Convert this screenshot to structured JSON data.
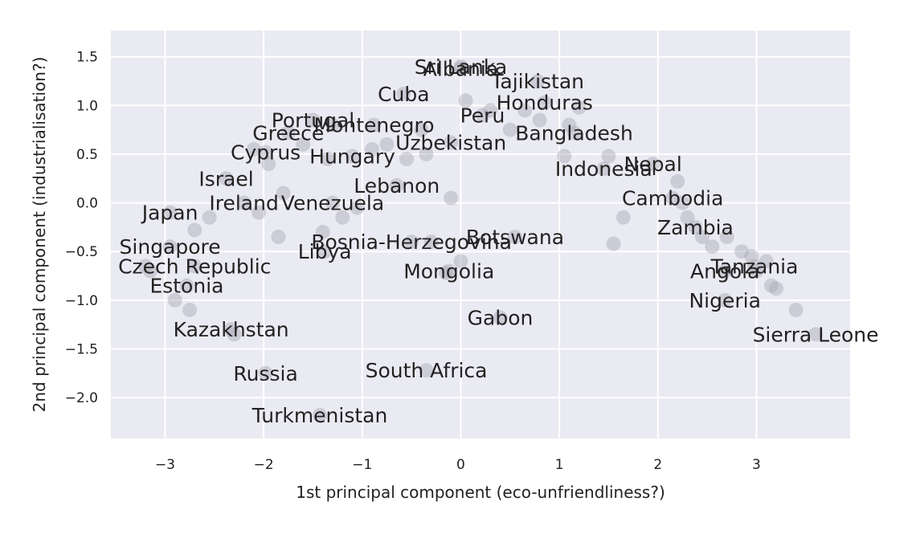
{
  "chart_data": {
    "type": "scatter",
    "xlabel": "1st principal component (eco-unfriendliness?)",
    "ylabel": "2nd principal component (industrialisation?)",
    "xlim": [
      -3.55,
      3.95
    ],
    "ylim": [
      -2.42,
      1.77
    ],
    "x_ticks": [
      -3,
      -2,
      -1,
      0,
      1,
      2,
      3
    ],
    "x_tick_labels": [
      "−3",
      "−2",
      "−1",
      "0",
      "1",
      "2",
      "3"
    ],
    "y_ticks": [
      1.5,
      1.0,
      0.5,
      0.0,
      -0.5,
      -1.0,
      -1.5,
      -2.0
    ],
    "y_tick_labels": [
      "1.5",
      "1.0",
      "0.5",
      "0.0",
      "−0.5",
      "−1.0",
      "−1.5",
      "−2.0"
    ],
    "grid": true,
    "colors": {
      "background": "#eaeaf2",
      "grid": "#ffffff",
      "point": "#a9a9b3"
    },
    "labeled_points": [
      {
        "label": "Sri Lanka",
        "x": 0.0,
        "y": 1.4
      },
      {
        "label": "Albania",
        "x": 0.0,
        "y": 1.38
      },
      {
        "label": "Tajikistan",
        "x": 0.78,
        "y": 1.25
      },
      {
        "label": "Cuba",
        "x": -0.58,
        "y": 1.12
      },
      {
        "label": "Honduras",
        "x": 0.85,
        "y": 1.03
      },
      {
        "label": "Portugal",
        "x": -1.5,
        "y": 0.85
      },
      {
        "label": "Montenegro",
        "x": -0.88,
        "y": 0.8
      },
      {
        "label": "Peru",
        "x": 0.22,
        "y": 0.9
      },
      {
        "label": "Bangladesh",
        "x": 1.15,
        "y": 0.72
      },
      {
        "label": "Uzbekistan",
        "x": -0.1,
        "y": 0.62
      },
      {
        "label": "Greece",
        "x": -1.75,
        "y": 0.72
      },
      {
        "label": "Hungary",
        "x": -1.1,
        "y": 0.48
      },
      {
        "label": "Cyprus",
        "x": -1.98,
        "y": 0.52
      },
      {
        "label": "Nepal",
        "x": 1.95,
        "y": 0.4
      },
      {
        "label": "Indonesia",
        "x": 1.45,
        "y": 0.35
      },
      {
        "label": "Israel",
        "x": -2.38,
        "y": 0.25
      },
      {
        "label": "Lebanon",
        "x": -0.65,
        "y": 0.18
      },
      {
        "label": "Ireland",
        "x": -2.2,
        "y": 0.0
      },
      {
        "label": "Venezuela",
        "x": -1.3,
        "y": 0.0
      },
      {
        "label": "Cambodia",
        "x": 2.15,
        "y": 0.05
      },
      {
        "label": "Japan",
        "x": -2.95,
        "y": -0.1
      },
      {
        "label": "Zambia",
        "x": 2.38,
        "y": -0.25
      },
      {
        "label": "Botswana",
        "x": 0.55,
        "y": -0.35
      },
      {
        "label": "Singapore",
        "x": -2.95,
        "y": -0.45
      },
      {
        "label": "Bosnia-Herzegovina",
        "x": -0.5,
        "y": -0.4
      },
      {
        "label": "Libya",
        "x": -1.38,
        "y": -0.5
      },
      {
        "label": "Czech Republic",
        "x": -2.7,
        "y": -0.65
      },
      {
        "label": "Tanzania",
        "x": 2.98,
        "y": -0.65
      },
      {
        "label": "Mongolia",
        "x": -0.12,
        "y": -0.7
      },
      {
        "label": "Angola",
        "x": 2.68,
        "y": -0.7
      },
      {
        "label": "Estonia",
        "x": -2.78,
        "y": -0.85
      },
      {
        "label": "Nigeria",
        "x": 2.68,
        "y": -1.0
      },
      {
        "label": "Gabon",
        "x": 0.4,
        "y": -1.18
      },
      {
        "label": "Kazakhstan",
        "x": -2.33,
        "y": -1.3
      },
      {
        "label": "Sierra Leone",
        "x": 3.6,
        "y": -1.35
      },
      {
        "label": "South Africa",
        "x": -0.35,
        "y": -1.72
      },
      {
        "label": "Russia",
        "x": -1.98,
        "y": -1.75
      },
      {
        "label": "Turkmenistan",
        "x": -1.43,
        "y": -2.18
      }
    ],
    "unlabeled_points": [
      [
        -3.15,
        -0.7
      ],
      [
        -3.2,
        -0.65
      ],
      [
        -2.55,
        -0.15
      ],
      [
        -2.7,
        -0.28
      ],
      [
        -2.1,
        0.55
      ],
      [
        -1.95,
        0.4
      ],
      [
        -1.8,
        0.1
      ],
      [
        -1.6,
        0.6
      ],
      [
        -1.3,
        0.8
      ],
      [
        -1.35,
        0.45
      ],
      [
        -1.2,
        -0.15
      ],
      [
        -1.05,
        -0.05
      ],
      [
        -0.9,
        0.55
      ],
      [
        -0.75,
        0.6
      ],
      [
        -0.55,
        0.45
      ],
      [
        -0.4,
        0.75
      ],
      [
        -0.35,
        0.5
      ],
      [
        -0.1,
        0.05
      ],
      [
        0.05,
        1.05
      ],
      [
        0.3,
        0.95
      ],
      [
        0.5,
        0.75
      ],
      [
        0.65,
        0.95
      ],
      [
        0.8,
        0.85
      ],
      [
        1.1,
        0.8
      ],
      [
        1.2,
        0.98
      ],
      [
        1.05,
        0.48
      ],
      [
        1.5,
        0.48
      ],
      [
        1.65,
        -0.15
      ],
      [
        1.55,
        -0.42
      ],
      [
        2.2,
        0.22
      ],
      [
        2.25,
        0.0
      ],
      [
        2.3,
        -0.15
      ],
      [
        2.45,
        -0.35
      ],
      [
        2.55,
        -0.45
      ],
      [
        2.7,
        -0.35
      ],
      [
        2.85,
        -0.5
      ],
      [
        2.95,
        -0.55
      ],
      [
        3.0,
        -0.7
      ],
      [
        3.1,
        -0.6
      ],
      [
        3.15,
        -0.85
      ],
      [
        3.2,
        -0.88
      ],
      [
        3.4,
        -1.1
      ],
      [
        -1.4,
        -0.3
      ],
      [
        -1.85,
        -0.35
      ],
      [
        -2.05,
        -0.1
      ],
      [
        -2.75,
        -1.1
      ],
      [
        -2.9,
        -1.0
      ],
      [
        -2.3,
        -1.35
      ],
      [
        -0.3,
        -0.4
      ],
      [
        0.0,
        -0.6
      ],
      [
        -0.15,
        -0.72
      ]
    ]
  }
}
